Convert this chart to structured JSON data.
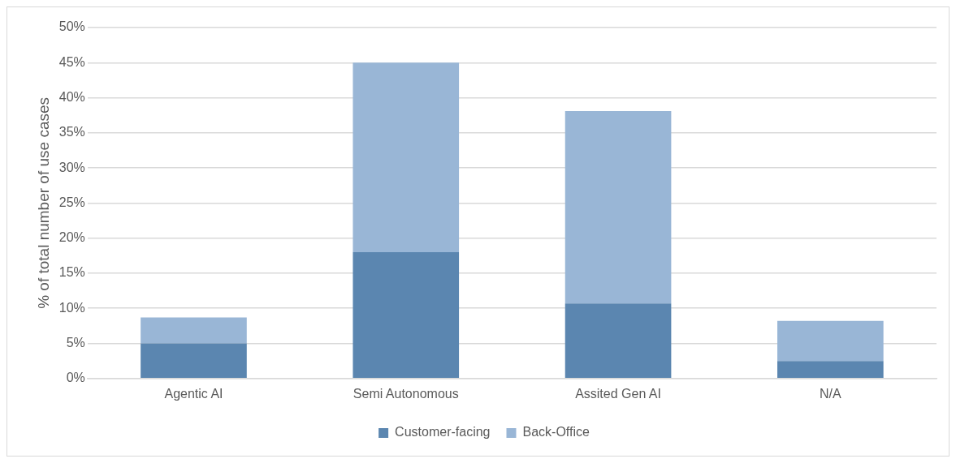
{
  "chart_data": {
    "type": "bar",
    "stacked": true,
    "ylabel": "% of total number of use cases",
    "categories": [
      "Agentic AI",
      "Semi Autonomous",
      "Assited Gen AI",
      "N/A"
    ],
    "series": [
      {
        "name": "Customer-facing",
        "color": "#5b86b0",
        "values": [
          5.0,
          18.0,
          10.7,
          2.5
        ]
      },
      {
        "name": "Back-Office",
        "color": "#99b6d6",
        "values": [
          3.7,
          27.0,
          27.4,
          5.7
        ]
      }
    ],
    "ylim": [
      0,
      50
    ],
    "yticks": [
      {
        "value": 0,
        "label": "0%"
      },
      {
        "value": 5,
        "label": "5%"
      },
      {
        "value": 10,
        "label": "10%"
      },
      {
        "value": 15,
        "label": "15%"
      },
      {
        "value": 20,
        "label": "20%"
      },
      {
        "value": 25,
        "label": "25%"
      },
      {
        "value": 30,
        "label": "30%"
      },
      {
        "value": 35,
        "label": "35%"
      },
      {
        "value": 40,
        "label": "40%"
      },
      {
        "value": 45,
        "label": "45%"
      },
      {
        "value": 50,
        "label": "50%"
      }
    ],
    "grid": "y",
    "legend": "bottom"
  }
}
